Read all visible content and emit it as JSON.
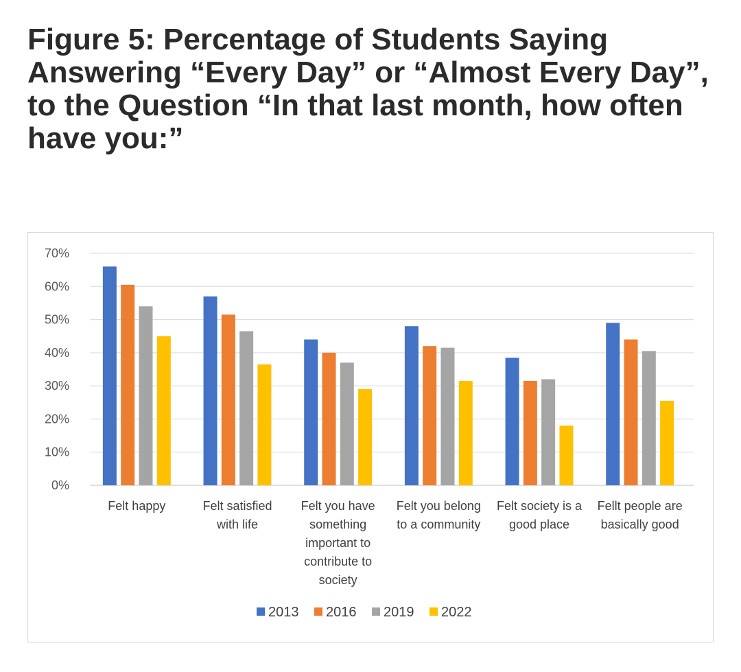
{
  "header": {
    "title_lines": [
      "Figure 5: Percentage of Students Saying",
      "Answering “Every Day” or “Almost Every Day”,",
      "to the Question “In that last month, how often",
      "have you:”"
    ]
  },
  "chart_data": {
    "type": "bar",
    "title": "Figure 5: Percentage of Students Saying Answering “Every Day” or “Almost Every Day”, to the Question “In that last month, how often have you:”",
    "categories": [
      "Felt happy",
      "Felt satisfied with life",
      "Felt you have something important to contribute to society",
      "Felt you belong to a community",
      "Felt society is a good place",
      "Fellt people are basically good"
    ],
    "category_label_lines": [
      [
        "Felt happy"
      ],
      [
        "Felt satisfied",
        "with life"
      ],
      [
        "Felt you have",
        "something",
        "important to",
        "contribute to",
        "society"
      ],
      [
        "Felt you belong",
        "to a community"
      ],
      [
        "Felt society is a",
        "good place"
      ],
      [
        "Fellt people are",
        "basically good"
      ]
    ],
    "series": [
      {
        "name": "2013",
        "color": "#4472C4",
        "values": [
          66,
          57,
          44,
          48,
          38.5,
          49
        ]
      },
      {
        "name": "2016",
        "color": "#ED7D31",
        "values": [
          60.5,
          51.5,
          40,
          42,
          31.5,
          44
        ]
      },
      {
        "name": "2019",
        "color": "#A5A5A5",
        "values": [
          54,
          46.5,
          37,
          41.5,
          32,
          40.5
        ]
      },
      {
        "name": "2022",
        "color": "#FFC000",
        "values": [
          45,
          36.5,
          29,
          31.5,
          18,
          25.5
        ]
      }
    ],
    "y_ticks": [
      "0%",
      "10%",
      "20%",
      "30%",
      "40%",
      "50%",
      "60%",
      "70%"
    ],
    "ylim": [
      0,
      70
    ],
    "xlabel": "",
    "ylabel": "",
    "grid": true,
    "legend_position": "bottom"
  }
}
